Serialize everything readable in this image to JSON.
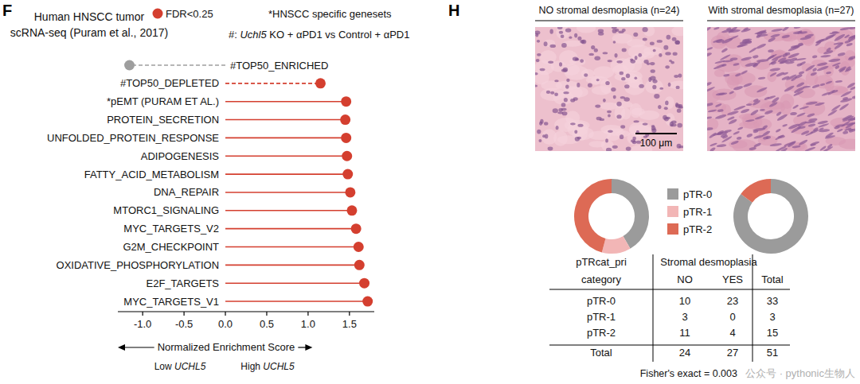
{
  "panel_labels": [
    "F",
    "H"
  ],
  "chart_data": [
    {
      "type": "lollipop",
      "orientation": "horizontal",
      "title": [
        "Human HNSCC tumor",
        "scRNA-seq (Puram et al., 2017)"
      ],
      "annotations": [
        [
          "*HNSCC specific genesets"
        ],
        [
          "#: ",
          "Uchl5",
          " KO + αPD1 vs Control + αPD1"
        ],
        [
          "Low ",
          "UCHL5"
        ],
        [
          "High ",
          "UCHL5"
        ]
      ],
      "x_label": "Normalized Enrichment Score",
      "categories": [
        "#TOP50_ENRICHED",
        "#TOP50_DEPLETED",
        "*pEMT (PURAM ET AL.)",
        "PROTEIN_SECRETION",
        "UNFOLDED_PROTEIN_RESPONSE",
        "ADIPOGENESIS",
        "FATTY_ACID_METABOLISM",
        "DNA_REPAIR",
        "MTORC1_SIGNALING",
        "MYC_TARGETS_V2",
        "G2M_CHECKPOINT",
        "OXIDATIVE_PHOSPHORYLATION",
        "E2F_TARGETS",
        "MYC_TARGETS_V1"
      ],
      "series": [
        {
          "color": "#9e9e9e",
          "line_style": "dashed",
          "marker": "circle",
          "values": [
            -1.16,
            null,
            null,
            null,
            null,
            null,
            null,
            null,
            null,
            null,
            null,
            null,
            null,
            null
          ]
        },
        {
          "color": "#d43f2f",
          "line_style": "dashed",
          "marker": "circle",
          "values": [
            null,
            1.15,
            null,
            null,
            null,
            null,
            null,
            null,
            null,
            null,
            null,
            null,
            null,
            null
          ]
        },
        {
          "name": "FDR<0.25",
          "color": "#d43f2f",
          "line_style": "solid",
          "marker": "circle",
          "values": [
            null,
            null,
            1.46,
            1.45,
            1.46,
            1.47,
            1.48,
            1.51,
            1.53,
            1.58,
            1.61,
            1.62,
            1.68,
            1.72
          ]
        }
      ],
      "xlim": [
        -1.3,
        1.8
      ],
      "xticks": [
        {
          "value": -1,
          "label": "-1.0"
        },
        {
          "value": -0.5,
          "label": "-0.5"
        },
        {
          "value": 0,
          "label": "0.0"
        },
        {
          "value": 0.5,
          "label": "0.5"
        },
        {
          "value": 1,
          "label": "1.0"
        },
        1.5
      ],
      "legend": "upper right",
      "grid": false
    },
    {
      "type": "donut",
      "categories": [
        "pTR-0",
        "pTR-1",
        "pTR-2"
      ],
      "values": [
        10,
        3,
        11
      ],
      "colors": [
        "#9b9b9b",
        "#f2b6b6",
        "#dd6a55"
      ],
      "legend": "right"
    },
    {
      "type": "donut",
      "categories": [
        "pTR-0",
        "pTR-1",
        "pTR-2"
      ],
      "values": [
        23,
        0,
        4
      ],
      "colors": [
        "#9b9b9b",
        "#f2b6b6",
        "#dd6a55"
      ]
    }
  ],
  "histology": {
    "titles": [
      "NO stromal desmoplasia (n=24)",
      "With stromal desmoplasia (n=27)"
    ],
    "scale_bar": "100 μm"
  },
  "table": {
    "header": {
      "row_label": [
        "pTRcat_pri",
        "category"
      ],
      "group": "Stromal desmoplasia",
      "columns": [
        "NO",
        "YES",
        "Total"
      ]
    },
    "rows": [
      [
        "pTR-0",
        10,
        23,
        33
      ],
      [
        "pTR-1",
        3,
        0,
        3
      ],
      [
        "pTR-2",
        11,
        4,
        15
      ],
      [
        "Total",
        24,
        27,
        51
      ]
    ],
    "footnote": "Fisher's exact = 0.003"
  },
  "watermark": "公众号 · pythonic生物人"
}
